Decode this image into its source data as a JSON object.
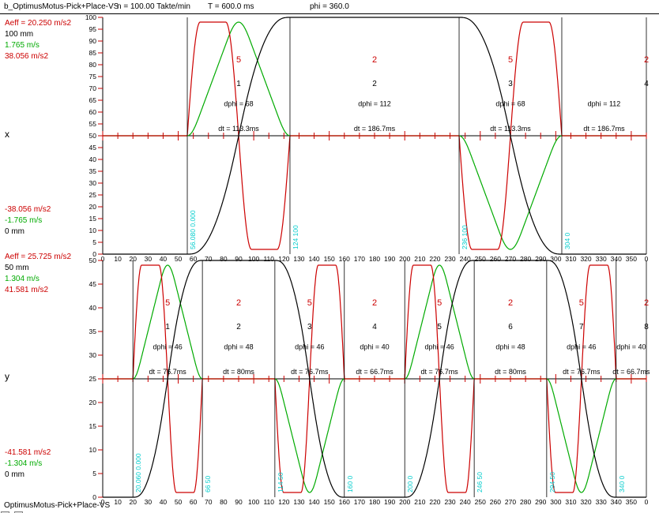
{
  "window": {
    "header": {
      "title": "b_OptimusMotus-Pick+Place-VS",
      "cycle_rate": "n = 100.00 Takte/min",
      "cycle_time": "T = 600.0 ms",
      "phi_range": "phi = 360.0"
    },
    "footer": {
      "title": "OptimusMotus-Pick+Place-VS"
    }
  },
  "colors": {
    "position": "#000000",
    "velocity": "#00AA00",
    "acceleration": "#CC0000",
    "marker_text": "#00CCCC",
    "segment_type": "#CC0000",
    "axis_tick": "#CC0000",
    "text": "#000000"
  },
  "chart_data": [
    {
      "type": "line",
      "axis_name": "x",
      "stroke_mm": 100,
      "ylim": [
        0,
        100
      ],
      "ytick_step": 5,
      "xlim": [
        0,
        360
      ],
      "xtick_step": 10,
      "xtick_end_label": "0",
      "series": [
        {
          "name": "position",
          "unit": "mm",
          "color_key": "position"
        },
        {
          "name": "velocity",
          "unit": "m/s",
          "color_key": "velocity"
        },
        {
          "name": "acceleration",
          "unit": "m/s2",
          "color_key": "acceleration"
        }
      ],
      "stats_top": [
        {
          "text": "Aeff = 20.250 m/s2",
          "color": "#CC0000"
        },
        {
          "text": "100 mm",
          "color": "#000000"
        },
        {
          "text": "1.765 m/s",
          "color": "#00AA00"
        },
        {
          "text": "38.056 m/s2",
          "color": "#CC0000"
        }
      ],
      "stats_bottom": [
        {
          "text": "-38.056 m/s2",
          "color": "#CC0000"
        },
        {
          "text": "-1.765 m/s",
          "color": "#00AA00"
        },
        {
          "text": "0 mm",
          "color": "#000000"
        }
      ],
      "segments": [
        {
          "type": "5",
          "seq": "1",
          "start": 56,
          "dphi": 68,
          "motion": "rise",
          "dphi_label": "dphi = 68",
          "dt_label": "dt = 113.3ms"
        },
        {
          "type": "2",
          "seq": "2",
          "start": 124,
          "dphi": 112,
          "motion": "dwell_high",
          "dphi_label": "dphi = 112",
          "dt_label": "dt = 186.7ms"
        },
        {
          "type": "5",
          "seq": "3",
          "start": 236,
          "dphi": 68,
          "motion": "fall",
          "dphi_label": "dphi = 68",
          "dt_label": "dt = 113.3ms"
        },
        {
          "type": "2",
          "seq": "4",
          "start": 304,
          "dphi": 112,
          "motion": "dwell_low",
          "dphi_label": "dphi = 112",
          "dt_label": "dt = 186.7ms"
        }
      ],
      "markers": [
        {
          "phi": 56,
          "label": "56.080 0.000"
        },
        {
          "phi": 124,
          "label": "124 100"
        },
        {
          "phi": 236,
          "label": "236 100"
        },
        {
          "phi": 304,
          "label": "304 0"
        }
      ]
    },
    {
      "type": "line",
      "axis_name": "y",
      "stroke_mm": 50,
      "ylim": [
        0,
        50
      ],
      "ytick_step": 5,
      "xlim": [
        0,
        360
      ],
      "xtick_step": 10,
      "xtick_end_label": "0",
      "series": [
        {
          "name": "position",
          "unit": "mm",
          "color_key": "position"
        },
        {
          "name": "velocity",
          "unit": "m/s",
          "color_key": "velocity"
        },
        {
          "name": "acceleration",
          "unit": "m/s2",
          "color_key": "acceleration"
        }
      ],
      "stats_top": [
        {
          "text": "Aeff = 25.725 m/s2",
          "color": "#CC0000"
        },
        {
          "text": "50 mm",
          "color": "#000000"
        },
        {
          "text": "1.304 m/s",
          "color": "#00AA00"
        },
        {
          "text": "41.581 m/s2",
          "color": "#CC0000"
        }
      ],
      "stats_bottom": [
        {
          "text": "-41.581 m/s2",
          "color": "#CC0000"
        },
        {
          "text": "-1.304 m/s",
          "color": "#00AA00"
        },
        {
          "text": "0 mm",
          "color": "#000000"
        }
      ],
      "segments": [
        {
          "type": "5",
          "seq": "1",
          "start": 20,
          "dphi": 46,
          "motion": "rise",
          "dphi_label": "dphi = 46",
          "dt_label": "dt = 76.7ms"
        },
        {
          "type": "2",
          "seq": "2",
          "start": 66,
          "dphi": 48,
          "motion": "dwell_high",
          "dphi_label": "dphi = 48",
          "dt_label": "dt = 80ms"
        },
        {
          "type": "5",
          "seq": "3",
          "start": 114,
          "dphi": 46,
          "motion": "fall",
          "dphi_label": "dphi = 46",
          "dt_label": "dt = 76.7ms"
        },
        {
          "type": "2",
          "seq": "4",
          "start": 160,
          "dphi": 40,
          "motion": "dwell_low",
          "dphi_label": "dphi = 40",
          "dt_label": "dt = 66.7ms"
        },
        {
          "type": "5",
          "seq": "5",
          "start": 200,
          "dphi": 46,
          "motion": "rise",
          "dphi_label": "dphi = 46",
          "dt_label": "dt = 76.7ms"
        },
        {
          "type": "2",
          "seq": "6",
          "start": 246,
          "dphi": 48,
          "motion": "dwell_high",
          "dphi_label": "dphi = 48",
          "dt_label": "dt = 80ms"
        },
        {
          "type": "5",
          "seq": "7",
          "start": 294,
          "dphi": 46,
          "motion": "fall",
          "dphi_label": "dphi = 46",
          "dt_label": "dt = 76.7ms"
        },
        {
          "type": "2",
          "seq": "8",
          "start": 340,
          "dphi": 40,
          "motion": "dwell_low",
          "dphi_label": "dphi = 40",
          "dt_label": "dt = 66.7ms"
        }
      ],
      "markers": [
        {
          "phi": 20,
          "label": "20.060 0.000"
        },
        {
          "phi": 66,
          "label": "66 50"
        },
        {
          "phi": 114,
          "label": "114 50"
        },
        {
          "phi": 160,
          "label": "160 0"
        },
        {
          "phi": 200,
          "label": "200 0"
        },
        {
          "phi": 246,
          "label": "246 50"
        },
        {
          "phi": 294,
          "label": "294 50"
        },
        {
          "phi": 340,
          "label": "340 0"
        }
      ]
    }
  ]
}
